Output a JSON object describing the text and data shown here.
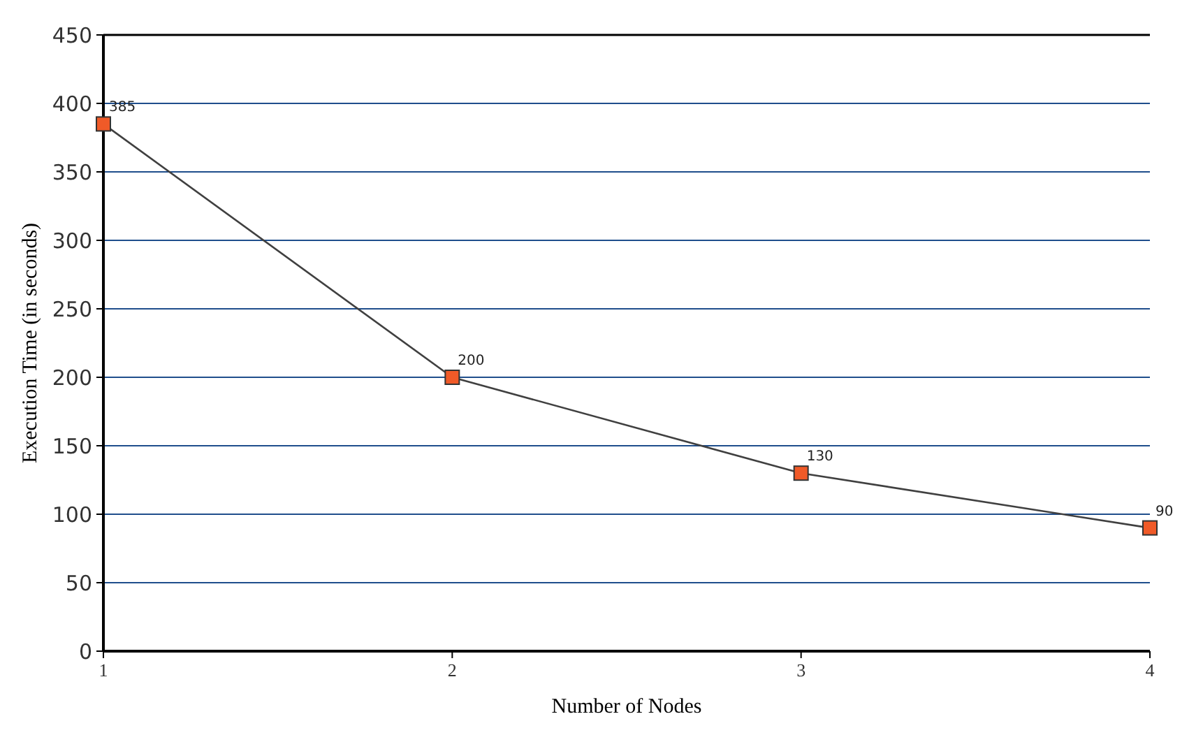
{
  "chart_data": {
    "type": "line",
    "xlabel": "Number of Nodes",
    "ylabel": "Execution Time (in seconds)",
    "x": [
      1,
      2,
      3,
      4
    ],
    "series": [
      {
        "color": "#f05a28",
        "values": [
          385,
          200,
          130,
          90
        ]
      }
    ],
    "xlim": [
      1,
      4
    ],
    "xticks": [
      1,
      2,
      3,
      4
    ],
    "ylim": [
      0,
      450
    ],
    "yticks": [
      0,
      50,
      100,
      150,
      200,
      250,
      300,
      350,
      400,
      450
    ],
    "grid": "y",
    "marker": "square",
    "line_style": "solid",
    "data_labels": true
  }
}
